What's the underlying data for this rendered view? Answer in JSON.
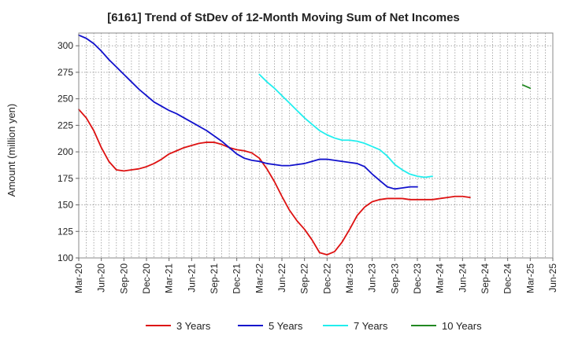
{
  "chart_data": {
    "type": "line",
    "title": "[6161]  Trend of StDev of 12-Month Moving Sum of Net Incomes",
    "ylabel": "Amount (million yen)",
    "xlabel": "",
    "ylim": [
      100,
      312
    ],
    "yticks": [
      100,
      125,
      150,
      175,
      200,
      225,
      250,
      275,
      300
    ],
    "x_tick_labels": [
      "Mar-20",
      "Jun-20",
      "Sep-20",
      "Dec-20",
      "Mar-21",
      "Jun-21",
      "Sep-21",
      "Dec-21",
      "Mar-22",
      "Jun-22",
      "Sep-22",
      "Dec-22",
      "Mar-23",
      "Jun-23",
      "Sep-23",
      "Dec-23",
      "Mar-24",
      "Jun-24",
      "Sep-24",
      "Dec-24",
      "Mar-25",
      "Jun-25"
    ],
    "grid": true,
    "legend_position": "bottom",
    "series": [
      {
        "name": "3 Years",
        "color": "#dd1111",
        "start": "Mar-20",
        "values": [
          240,
          232,
          220,
          204,
          191,
          183,
          182,
          183,
          184,
          186,
          189,
          193,
          198,
          201,
          204,
          206,
          208,
          209,
          209,
          207,
          204,
          202,
          201,
          199,
          194,
          184,
          172,
          158,
          145,
          135,
          127,
          117,
          105,
          103,
          106,
          115,
          127,
          140,
          148,
          153,
          155,
          156,
          156,
          156,
          155,
          155,
          155,
          155,
          156,
          157,
          158,
          158,
          157
        ]
      },
      {
        "name": "5 Years",
        "color": "#1111cc",
        "start": "Mar-20",
        "values": [
          310,
          307,
          302,
          295,
          287,
          280,
          273,
          266,
          259,
          253,
          247,
          243,
          239,
          236,
          232,
          228,
          224,
          220,
          215,
          210,
          204,
          198,
          194,
          192,
          191,
          189,
          188,
          187,
          187,
          188,
          189,
          191,
          193,
          193,
          192,
          191,
          190,
          189,
          186,
          179,
          173,
          167,
          165,
          166,
          167,
          167
        ]
      },
      {
        "name": "7 Years",
        "color": "#22eeee",
        "start": "Mar-22",
        "values": [
          273,
          266,
          260,
          253,
          246,
          239,
          232,
          226,
          220,
          216,
          213,
          211,
          211,
          210,
          208,
          205,
          202,
          196,
          188,
          183,
          179,
          177,
          176,
          177
        ]
      },
      {
        "name": "10 Years",
        "color": "#228822",
        "start": "Feb-25",
        "values": [
          263,
          260
        ]
      }
    ]
  }
}
